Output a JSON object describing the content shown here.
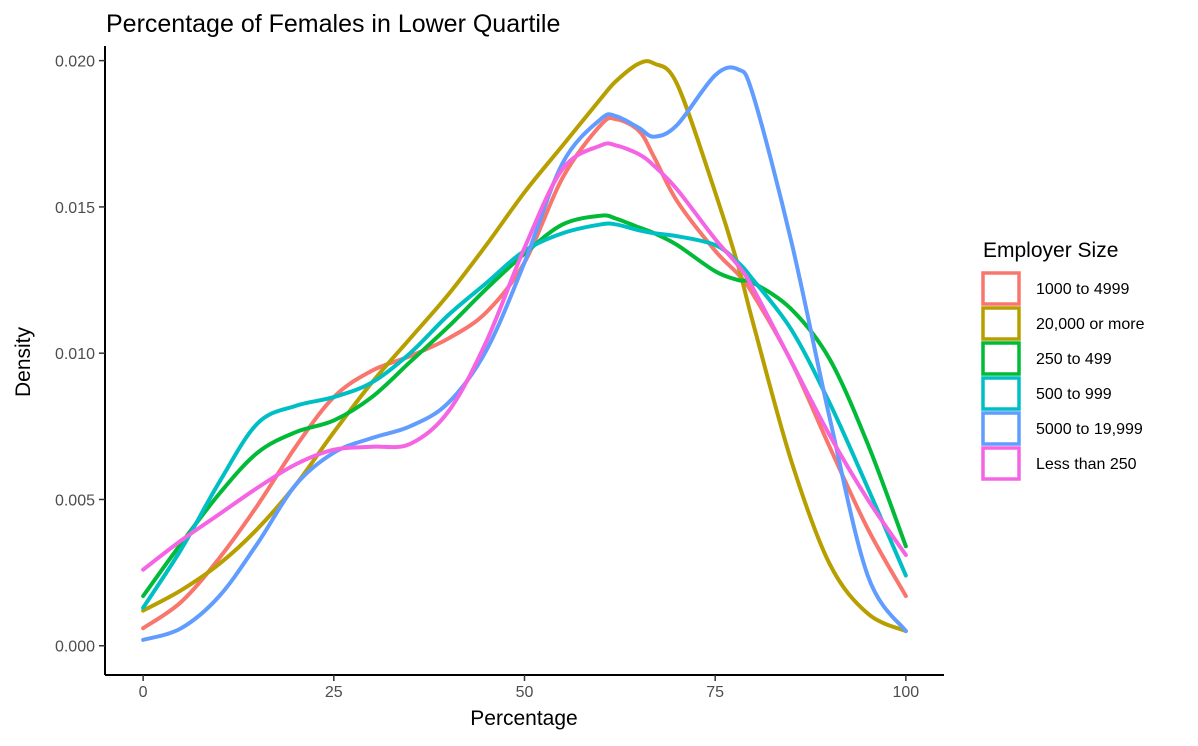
{
  "chart_data": {
    "type": "line",
    "title": "Percentage of Females in Lower Quartile",
    "xlabel": "Percentage",
    "ylabel": "Density",
    "xlim": [
      -5,
      105
    ],
    "ylim": [
      -0.001,
      0.0205
    ],
    "x_ticks": [
      0,
      25,
      50,
      75,
      100
    ],
    "x_tick_labels": [
      "0",
      "25",
      "50",
      "75",
      "100"
    ],
    "y_ticks": [
      0.0,
      0.005,
      0.01,
      0.015,
      0.02
    ],
    "y_tick_labels": [
      "0.000",
      "0.005",
      "0.010",
      "0.015",
      "0.020"
    ],
    "grid": false,
    "legend": {
      "title": "Employer Size",
      "placement": "right"
    },
    "x": [
      0,
      5,
      10,
      15,
      20,
      25,
      30,
      35,
      40,
      45,
      50,
      55,
      60,
      62,
      65,
      67,
      70,
      75,
      78,
      80,
      85,
      90,
      95,
      100
    ],
    "series": [
      {
        "name": "1000 to 4999",
        "color": "#F8766D",
        "values": [
          0.0006,
          0.0015,
          0.003,
          0.0048,
          0.0068,
          0.0085,
          0.0094,
          0.0099,
          0.0105,
          0.0114,
          0.0131,
          0.016,
          0.0178,
          0.018,
          0.0176,
          0.0167,
          0.0152,
          0.0135,
          0.0127,
          0.012,
          0.0097,
          0.0068,
          0.004,
          0.0017
        ]
      },
      {
        "name": "20,000 or more",
        "color": "#B79F00",
        "values": [
          0.0012,
          0.0019,
          0.0028,
          0.004,
          0.0055,
          0.0073,
          0.009,
          0.0105,
          0.012,
          0.0137,
          0.0155,
          0.0171,
          0.0187,
          0.0193,
          0.0199,
          0.0199,
          0.0192,
          0.0155,
          0.013,
          0.011,
          0.0063,
          0.0028,
          0.0011,
          0.0005
        ]
      },
      {
        "name": "250 to 499",
        "color": "#00BA38",
        "values": [
          0.0017,
          0.0035,
          0.0052,
          0.0066,
          0.0073,
          0.0077,
          0.0085,
          0.0097,
          0.0109,
          0.0122,
          0.0134,
          0.0144,
          0.0147,
          0.0146,
          0.0143,
          0.0141,
          0.0137,
          0.0128,
          0.0125,
          0.0124,
          0.0115,
          0.0098,
          0.0069,
          0.0034
        ]
      },
      {
        "name": "500 to 999",
        "color": "#00BFC4",
        "values": [
          0.0013,
          0.0033,
          0.0056,
          0.0076,
          0.0082,
          0.0085,
          0.009,
          0.01,
          0.0113,
          0.0124,
          0.0135,
          0.0141,
          0.0144,
          0.0144,
          0.0142,
          0.0141,
          0.014,
          0.0137,
          0.0131,
          0.0125,
          0.0108,
          0.0083,
          0.0054,
          0.0024
        ]
      },
      {
        "name": "5000 to 19,999",
        "color": "#619CFF",
        "values": [
          0.0002,
          0.0006,
          0.0017,
          0.0035,
          0.0055,
          0.0066,
          0.0071,
          0.0075,
          0.0083,
          0.0101,
          0.0131,
          0.0165,
          0.018,
          0.0181,
          0.0177,
          0.0174,
          0.0178,
          0.0195,
          0.0197,
          0.0188,
          0.0138,
          0.0078,
          0.0024,
          0.0005
        ]
      },
      {
        "name": "Less than 250",
        "color": "#F564E3",
        "values": [
          0.0026,
          0.0036,
          0.0045,
          0.0054,
          0.0062,
          0.0067,
          0.0068,
          0.0069,
          0.008,
          0.0104,
          0.0136,
          0.0163,
          0.0171,
          0.0171,
          0.0168,
          0.0164,
          0.0156,
          0.0139,
          0.013,
          0.0122,
          0.0097,
          0.0072,
          0.005,
          0.0031
        ]
      }
    ]
  }
}
